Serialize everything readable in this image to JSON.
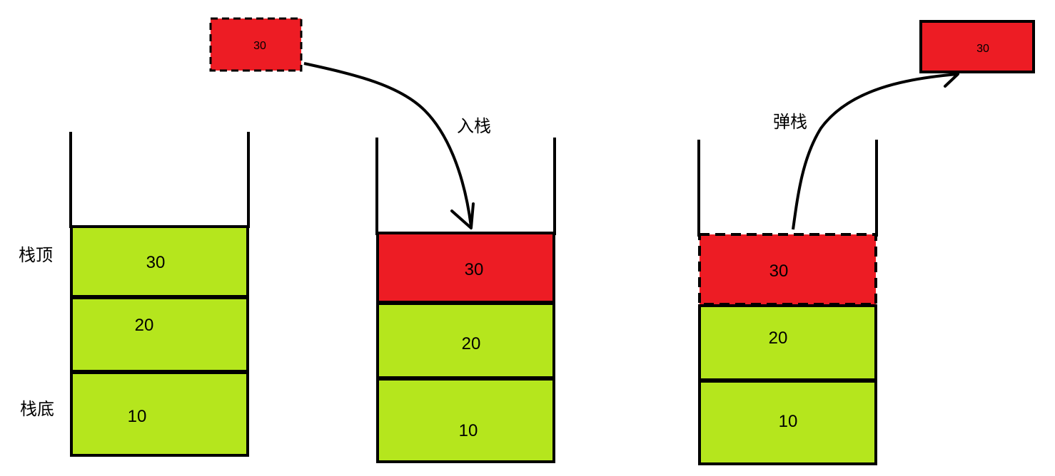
{
  "labels": {
    "stack_top": "栈顶",
    "stack_bottom": "栈底",
    "push": "入栈",
    "pop": "弹栈"
  },
  "stacks": [
    {
      "name": "initial",
      "cells": [
        {
          "value": "30",
          "color": "#b5e61d"
        },
        {
          "value": "20",
          "color": "#b5e61d"
        },
        {
          "value": "10",
          "color": "#b5e61d"
        }
      ]
    },
    {
      "name": "push",
      "cells": [
        {
          "value": "30",
          "color": "#ed1c24"
        },
        {
          "value": "20",
          "color": "#b5e61d"
        },
        {
          "value": "10",
          "color": "#b5e61d"
        }
      ]
    },
    {
      "name": "pop",
      "cells": [
        {
          "value": "30",
          "color": "#ed1c24"
        },
        {
          "value": "20",
          "color": "#b5e61d"
        },
        {
          "value": "10",
          "color": "#b5e61d"
        }
      ]
    }
  ],
  "incoming_block": {
    "value": "30",
    "color": "#ed1c24"
  },
  "outgoing_block": {
    "value": "30",
    "color": "#ed1c24"
  },
  "colors": {
    "green": "#b5e61d",
    "red": "#ed1c24",
    "outline": "#000000"
  }
}
